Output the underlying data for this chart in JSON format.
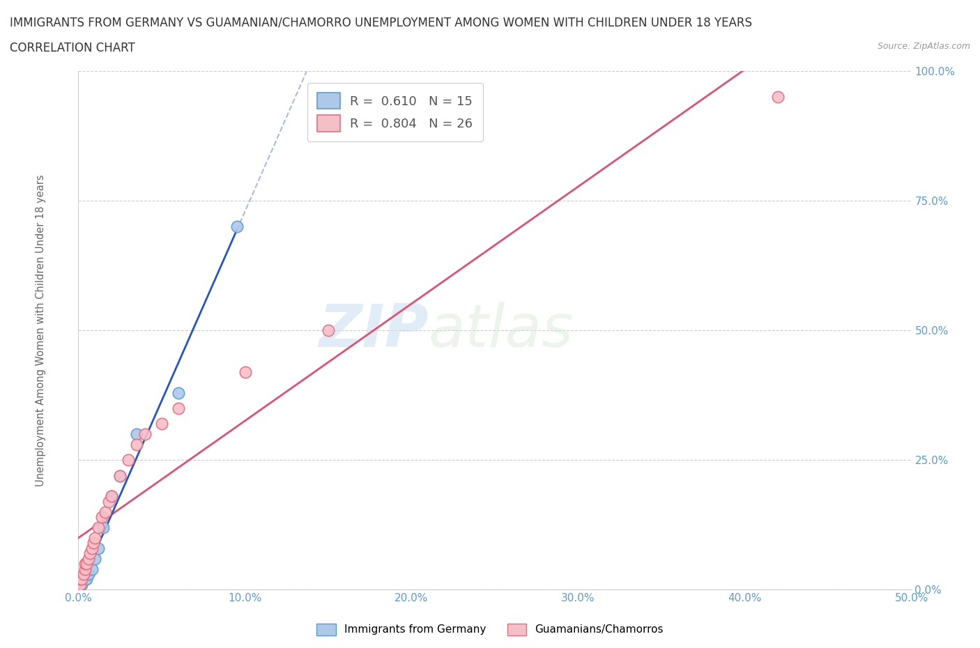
{
  "title_line1": "IMMIGRANTS FROM GERMANY VS GUAMANIAN/CHAMORRO UNEMPLOYMENT AMONG WOMEN WITH CHILDREN UNDER 18 YEARS",
  "title_line2": "CORRELATION CHART",
  "source": "Source: ZipAtlas.com",
  "ylabel": "Unemployment Among Women with Children Under 18 years",
  "xlim": [
    0,
    0.5
  ],
  "ylim": [
    0,
    1.0
  ],
  "xticks": [
    0,
    0.1,
    0.2,
    0.3,
    0.4,
    0.5
  ],
  "xtick_labels": [
    "0.0%",
    "10.0%",
    "20.0%",
    "30.0%",
    "40.0%",
    "50.0%"
  ],
  "yticks": [
    0,
    0.25,
    0.5,
    0.75,
    1.0
  ],
  "ytick_labels": [
    "0.0%",
    "25.0%",
    "50.0%",
    "75.0%",
    "100.0%"
  ],
  "germany_color": "#adc8e8",
  "germany_edge_color": "#5b9bd5",
  "chamorro_color": "#f5bfc8",
  "chamorro_edge_color": "#e07080",
  "germany_line_color": "#2255cc",
  "chamorro_line_color": "#e05070",
  "germany_line_dash_color": "#aabbdd",
  "R_germany": 0.61,
  "N_germany": 15,
  "R_chamorro": 0.804,
  "N_chamorro": 26,
  "legend_label_germany": "Immigrants from Germany",
  "legend_label_chamorro": "Guamanians/Chamorros",
  "watermark_zip": "ZIP",
  "watermark_atlas": "atlas",
  "germany_x": [
    0.001,
    0.002,
    0.003,
    0.004,
    0.005,
    0.006,
    0.008,
    0.01,
    0.012,
    0.015,
    0.02,
    0.025,
    0.035,
    0.06,
    0.095
  ],
  "germany_y": [
    0.01,
    0.01,
    0.02,
    0.02,
    0.02,
    0.03,
    0.04,
    0.06,
    0.08,
    0.12,
    0.18,
    0.22,
    0.3,
    0.38,
    0.7
  ],
  "chamorro_x": [
    0.001,
    0.001,
    0.002,
    0.003,
    0.004,
    0.004,
    0.005,
    0.006,
    0.007,
    0.008,
    0.009,
    0.01,
    0.012,
    0.014,
    0.016,
    0.018,
    0.02,
    0.025,
    0.03,
    0.035,
    0.04,
    0.05,
    0.06,
    0.1,
    0.15,
    0.42
  ],
  "chamorro_y": [
    0.01,
    0.02,
    0.02,
    0.03,
    0.04,
    0.05,
    0.05,
    0.06,
    0.07,
    0.08,
    0.09,
    0.1,
    0.12,
    0.14,
    0.15,
    0.17,
    0.18,
    0.22,
    0.25,
    0.28,
    0.3,
    0.32,
    0.35,
    0.42,
    0.5,
    0.95
  ],
  "background_color": "#ffffff",
  "grid_color": "#cccccc",
  "tick_color": "#5b9bd5"
}
